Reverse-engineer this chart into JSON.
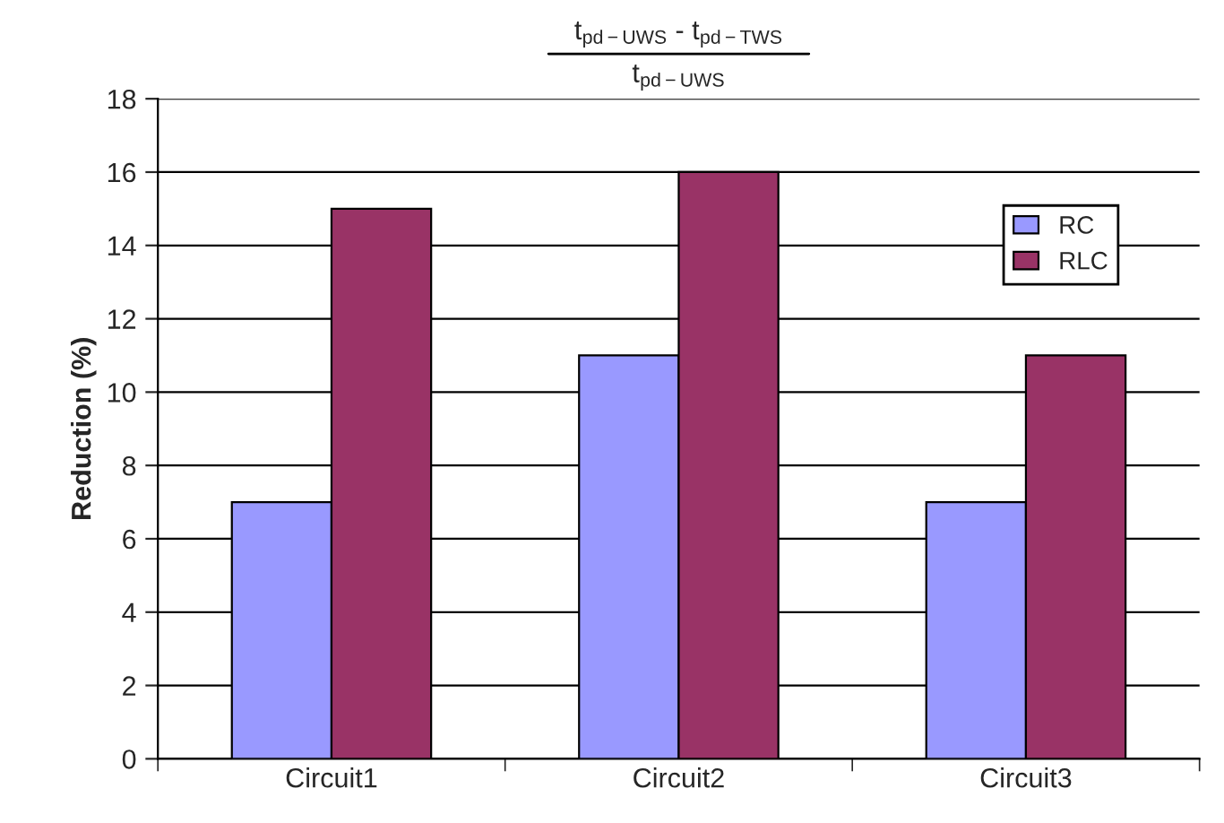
{
  "chart_data": {
    "type": "bar",
    "title": "t$_{pd−UWS}$ - t$_{pd−TWS}$",
    "subtitle": "t$_{pd−UWS}$",
    "ylabel": "Reduction (%)",
    "categories": [
      "Circuit1",
      "Circuit2",
      "Circuit3"
    ],
    "series": [
      {
        "name": "RC",
        "color": "#9999ff",
        "values": [
          7,
          11,
          7
        ]
      },
      {
        "name": "RLC",
        "color": "#993366",
        "values": [
          15,
          16,
          11
        ]
      }
    ],
    "ylim": [
      0,
      18
    ],
    "yticks": [
      0,
      2,
      4,
      6,
      8,
      10,
      12,
      14,
      16,
      18
    ],
    "grid": "y",
    "legend": "top right"
  }
}
